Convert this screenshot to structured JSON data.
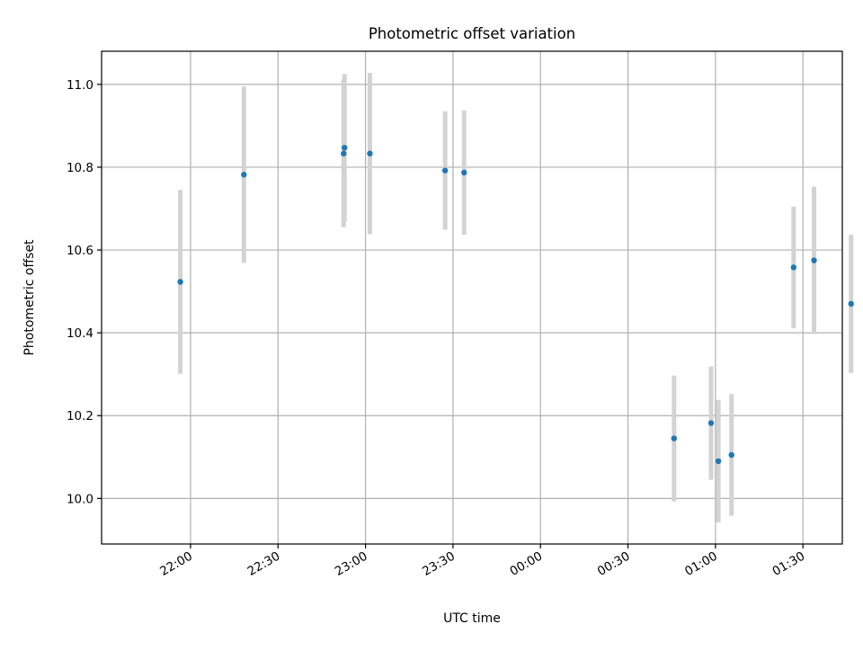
{
  "chart_data": {
    "type": "scatter",
    "title": "Photometric offset variation",
    "xlabel": "UTC time",
    "ylabel": "Photometric offset",
    "x_unit": "minutes after 22:00 UTC",
    "xlim": [
      -30.5,
      223.5
    ],
    "ylim": [
      9.89,
      11.08
    ],
    "x_ticks": [
      {
        "value": 0,
        "label": "22:00"
      },
      {
        "value": 30,
        "label": "22:30"
      },
      {
        "value": 60,
        "label": "23:00"
      },
      {
        "value": 90,
        "label": "23:30"
      },
      {
        "value": 120,
        "label": "00:00"
      },
      {
        "value": 150,
        "label": "00:30"
      },
      {
        "value": 180,
        "label": "01:00"
      },
      {
        "value": 210,
        "label": "01:30"
      }
    ],
    "y_ticks": [
      {
        "value": 10.0,
        "label": "10.0"
      },
      {
        "value": 10.2,
        "label": "10.2"
      },
      {
        "value": 10.4,
        "label": "10.4"
      },
      {
        "value": 10.6,
        "label": "10.6"
      },
      {
        "value": 10.8,
        "label": "10.8"
      },
      {
        "value": 11.0,
        "label": "11.0"
      }
    ],
    "grid": true,
    "points": [
      {
        "time": "21:56",
        "x": -3.5,
        "y": 10.523,
        "err": 0.222
      },
      {
        "time": "22:18",
        "x": 18.3,
        "y": 10.782,
        "err": 0.213
      },
      {
        "time": "22:52",
        "x": 52.5,
        "y": 10.833,
        "err": 0.178
      },
      {
        "time": "22:52",
        "x": 52.8,
        "y": 10.847,
        "err": 0.178
      },
      {
        "time": "23:01",
        "x": 61.5,
        "y": 10.833,
        "err": 0.195
      },
      {
        "time": "23:27",
        "x": 87.3,
        "y": 10.792,
        "err": 0.143
      },
      {
        "time": "23:34",
        "x": 93.8,
        "y": 10.787,
        "err": 0.15
      },
      {
        "time": "00:46",
        "x": 165.8,
        "y": 10.145,
        "err": 0.152
      },
      {
        "time": "00:58",
        "x": 178.5,
        "y": 10.182,
        "err": 0.137
      },
      {
        "time": "01:01",
        "x": 181.0,
        "y": 10.09,
        "err": 0.148
      },
      {
        "time": "01:05",
        "x": 185.5,
        "y": 10.105,
        "err": 0.147
      },
      {
        "time": "01:27",
        "x": 206.8,
        "y": 10.558,
        "err": 0.147
      },
      {
        "time": "01:34",
        "x": 213.8,
        "y": 10.575,
        "err": 0.178
      },
      {
        "time": "01:47",
        "x": 226.5,
        "y": 10.47,
        "err": 0.167
      }
    ],
    "colors": {
      "marker": "#1f77b4",
      "errorbar": "#d3d3d3",
      "grid": "#b0b0b0"
    }
  }
}
